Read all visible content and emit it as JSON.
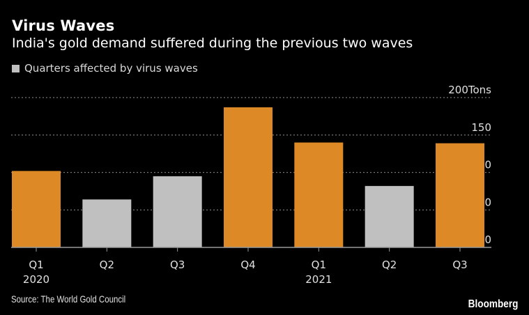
{
  "chart_data": {
    "type": "bar",
    "title": "Virus Waves",
    "subtitle": "India's gold demand suffered during the previous two waves",
    "legend": [
      {
        "label": "Quarters affected by virus waves",
        "color": "#c0c0c0"
      }
    ],
    "categories": [
      "Q1",
      "Q2",
      "Q3",
      "Q4",
      "Q1",
      "Q2",
      "Q3"
    ],
    "year_labels": [
      "2020",
      "",
      "",
      "",
      "2021",
      "",
      ""
    ],
    "values": [
      102,
      64,
      95,
      187,
      140,
      82,
      139
    ],
    "affected": [
      false,
      true,
      true,
      false,
      false,
      true,
      false
    ],
    "colors": {
      "normal": "#dd8a26",
      "affected": "#c0c0c0",
      "grid": "#777777",
      "axis": "#9a9a9a"
    },
    "ylabel": "Tons",
    "yticks": [
      0,
      50,
      100,
      150,
      200
    ],
    "ylim": [
      0,
      200
    ],
    "grid": true,
    "y_axis_side": "right"
  },
  "source": "Source: The World Gold Council",
  "brand": "Bloomberg"
}
